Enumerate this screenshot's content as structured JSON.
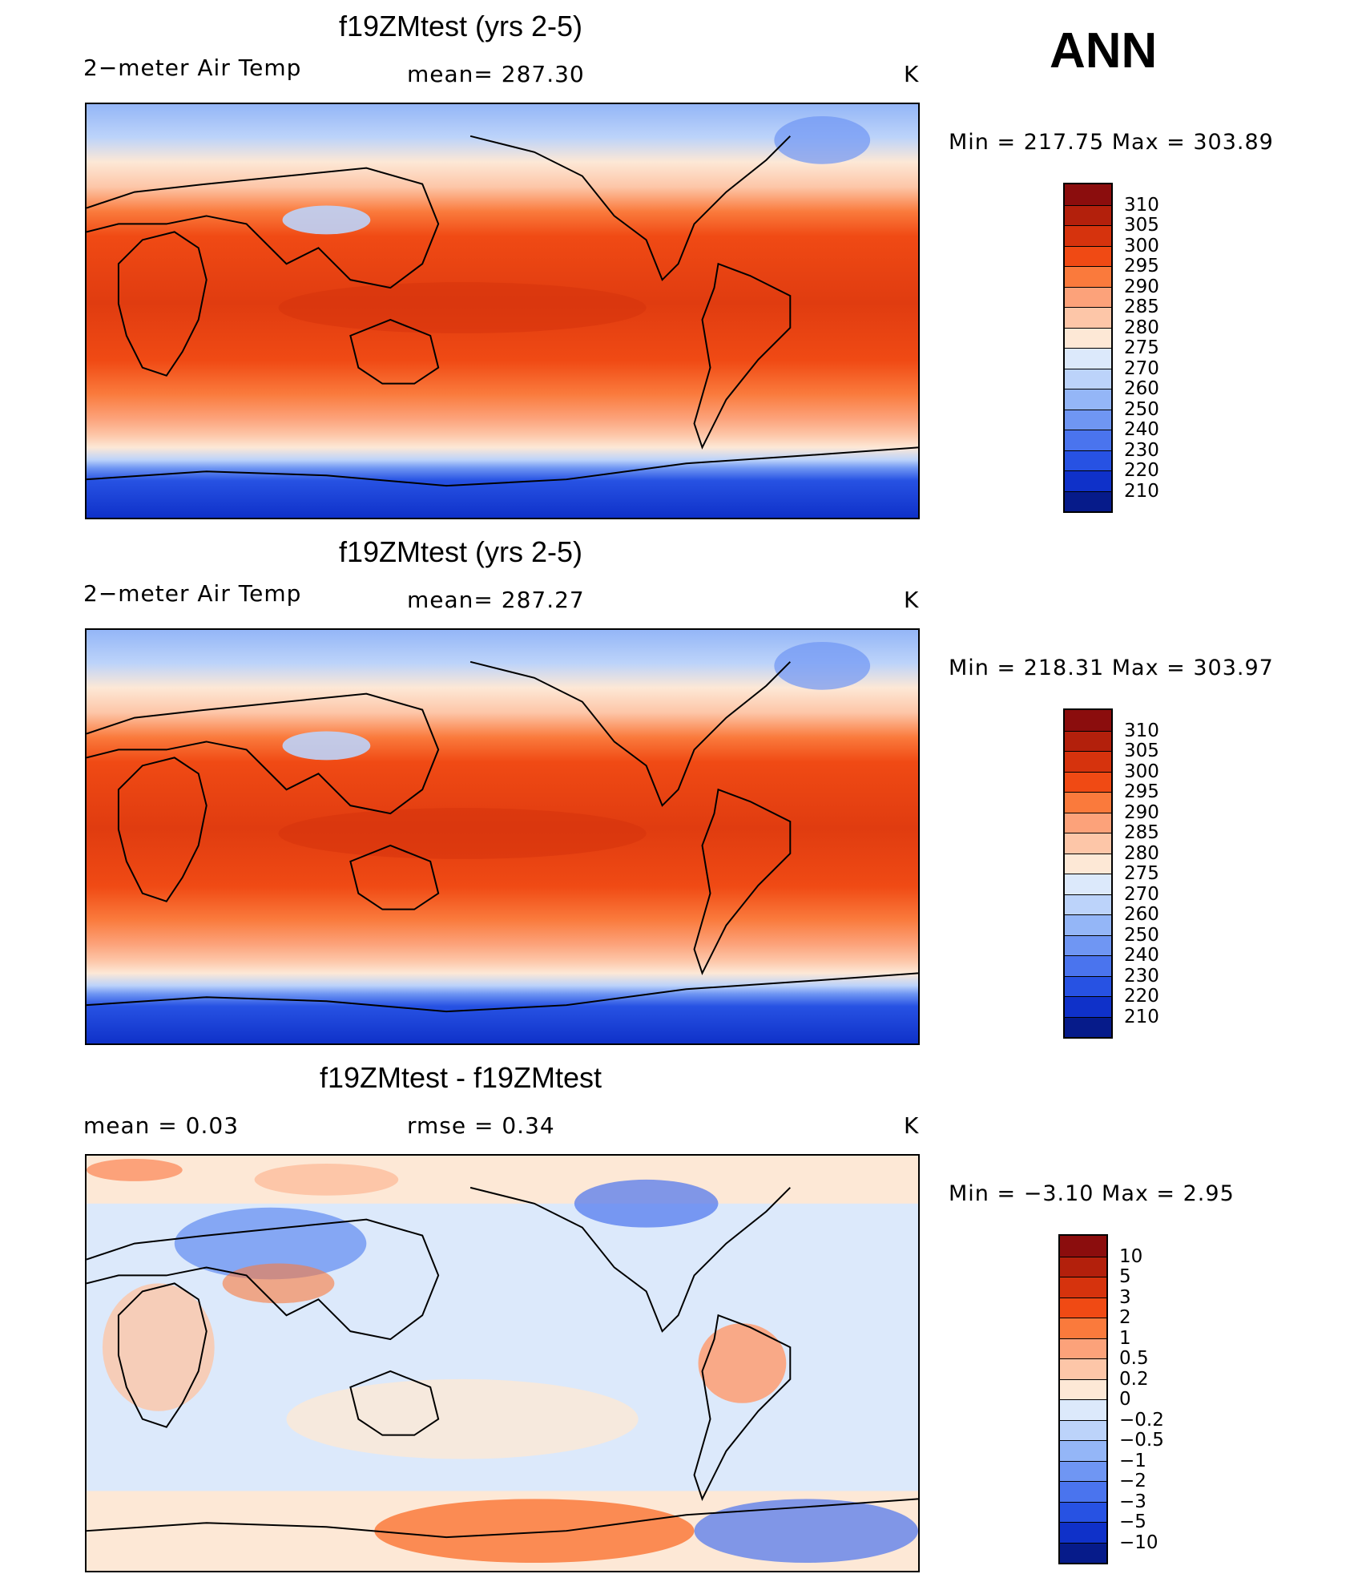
{
  "header": {
    "season": "ANN"
  },
  "panels": [
    {
      "title": "f19ZMtest (yrs 2-5)",
      "left_label": "2−meter Air Temp",
      "center_label": "mean=  287.30",
      "units": "K",
      "min_max": "Min  =  217.75  Max  =  303.89",
      "kind": "absolute"
    },
    {
      "title": "f19ZMtest (yrs 2-5)",
      "left_label": "2−meter Air Temp",
      "center_label": "mean=  287.27",
      "units": "K",
      "min_max": "Min  =  218.31  Max  =  303.97",
      "kind": "absolute"
    },
    {
      "title": "f19ZMtest - f19ZMtest",
      "left_label": "mean  =      0.03",
      "center_label": "rmse  =      0.34",
      "units": "K",
      "min_max": "Min  =    −3.10  Max  =      2.95",
      "kind": "difference"
    }
  ],
  "colorbars": {
    "absolute": {
      "labels": [
        "310",
        "305",
        "300",
        "295",
        "290",
        "285",
        "280",
        "275",
        "270",
        "260",
        "250",
        "240",
        "230",
        "220",
        "210"
      ],
      "colors": [
        "#8b0d0d",
        "#b3200c",
        "#d6330d",
        "#f04a14",
        "#fa7a3c",
        "#fca27a",
        "#fdc6a8",
        "#fde8d6",
        "#dce9fb",
        "#bcd3fa",
        "#94b6f7",
        "#6f96f3",
        "#4a74ee",
        "#2752e3",
        "#0f31c9",
        "#061b8a"
      ]
    },
    "difference": {
      "labels": [
        "10",
        "5",
        "3",
        "2",
        "1",
        "0.5",
        "0.2",
        "0",
        "−0.2",
        "−0.5",
        "−1",
        "−2",
        "−3",
        "−5",
        "−10"
      ],
      "colors": [
        "#8b0d0d",
        "#b3200c",
        "#d6330d",
        "#f04a14",
        "#fa7a3c",
        "#fca27a",
        "#fdc6a8",
        "#fde8d6",
        "#dce9fb",
        "#bcd3fa",
        "#94b6f7",
        "#6f96f3",
        "#4a74ee",
        "#2752e3",
        "#0f31c9",
        "#061b8a"
      ]
    }
  }
}
